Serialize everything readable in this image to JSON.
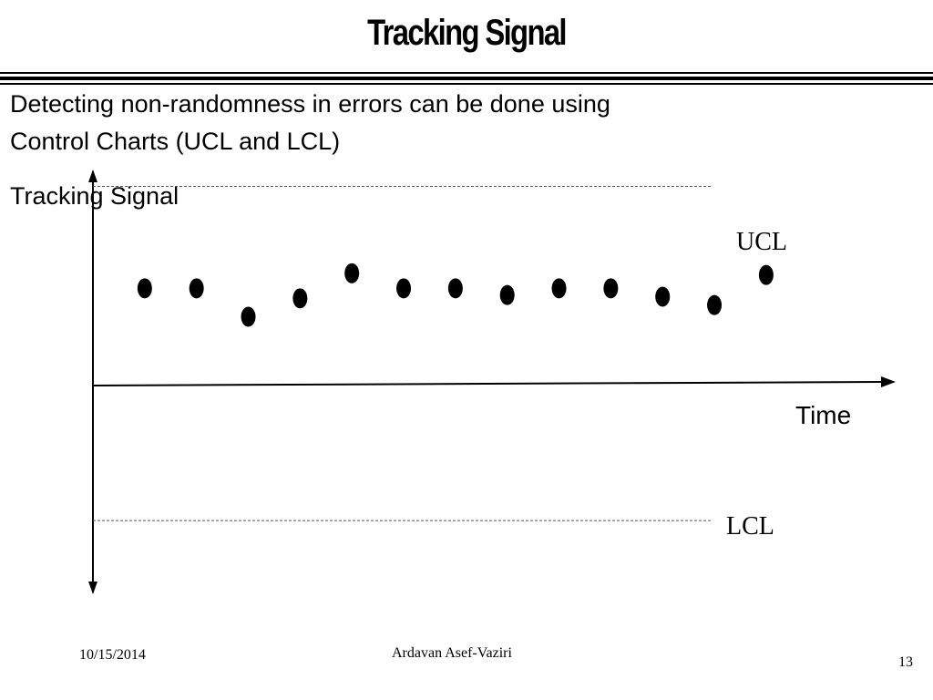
{
  "slide": {
    "title": "Tracking Signal",
    "body_line_1": "Detecting non-randomness in errors can be done using",
    "body_line_2": "Control Charts (UCL and LCL)",
    "body_line_3": "Tracking Signal"
  },
  "footer": {
    "date": "10/15/2014",
    "author": "Ardavan Asef-Vaziri",
    "page": "13"
  },
  "chart_data": {
    "type": "scatter",
    "title": "",
    "xlabel": "Time",
    "ylabel": "",
    "ucl_label": "UCL",
    "lcl_label": "LCL",
    "ucl": 1.0,
    "lcl": -1.0,
    "ylim": [
      -1.43,
      1.09
    ],
    "xlim": [
      0,
      15.5
    ],
    "x": [
      1,
      2,
      3,
      4,
      5,
      6,
      7,
      8,
      9,
      10,
      11,
      12,
      13
    ],
    "y": [
      0.39,
      0.39,
      0.22,
      0.33,
      0.48,
      0.39,
      0.39,
      0.35,
      0.39,
      0.39,
      0.34,
      0.29,
      0.47
    ],
    "grid": false,
    "colors": {
      "points": "#000000",
      "axis": "#000000",
      "limit_lines": "#555555"
    }
  }
}
